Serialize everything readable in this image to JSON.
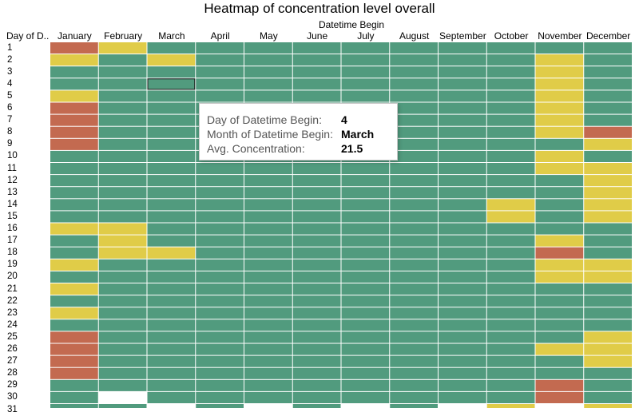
{
  "title": "Heatmap of concentration level overall",
  "row_header": "Day of D..",
  "column_group_label": "Datetime Begin",
  "colors": {
    "green": "#519b7e",
    "yellow": "#e0cc48",
    "red": "#c36a50",
    "empty": "#ffffff",
    "gridline": "#ffffff",
    "selection_outline": "#1e1e1e"
  },
  "chart_data": {
    "type": "heatmap",
    "title": "Heatmap of concentration level overall",
    "x_title": "Datetime Begin",
    "y_title": "Day of D..",
    "x_categories": [
      "January",
      "February",
      "March",
      "April",
      "May",
      "June",
      "July",
      "August",
      "September",
      "October",
      "November",
      "December"
    ],
    "y_categories": [
      "1",
      "2",
      "3",
      "4",
      "5",
      "6",
      "7",
      "8",
      "9",
      "10",
      "11",
      "12",
      "13",
      "14",
      "15",
      "16",
      "17",
      "18",
      "19",
      "20",
      "21",
      "22",
      "23",
      "24",
      "25",
      "26",
      "27",
      "28",
      "29",
      "30",
      "31"
    ],
    "cell_level_codes": {
      "G": "green",
      "Y": "yellow",
      "R": "red",
      "-": "no data"
    },
    "cells": [
      "RYGGGGGGGGGG",
      "YGYGGGGGGGYG",
      "GGGGGGGGGGYG",
      "GGGGGGGGGGYG",
      "YGGGGGGGGGYG",
      "RGGGGGGGGGYG",
      "RGGGGGGGGGYG",
      "RGGGGGGGGGYR",
      "RGGGGGGGGGGY",
      "GGGGGGGGGGYG",
      "GGGGGGGGGGYY",
      "GGGGGGGGGGGY",
      "GGGGGGGGGGGY",
      "GGGGGGGGGYGY",
      "GGGGGGGGGYGY",
      "YYGGGGGGGGGG",
      "GYGGGGGGGGYG",
      "GYYGGGGGGGRG",
      "YGGGGGGGGGYY",
      "GGGGGGGGGGYY",
      "YGGGGGGGGGGG",
      "GGGGGGGGGGGG",
      "YGGGGGGGGGGG",
      "GGGGGGGGGGGG",
      "RGGGGGGGGGGY",
      "RGGGGGGGGGYY",
      "RGGGGGGGGGGY",
      "RGGGGGGGGGGG",
      "GGGGGGGGGGRG",
      "G-GGGGGGGGRG",
      "GG-G-G-G-Y-Y"
    ],
    "selected_cell": {
      "day": "4",
      "month": "March"
    }
  },
  "tooltip": {
    "rows": [
      {
        "key": "Day of Datetime Begin:",
        "value": "4"
      },
      {
        "key": "Month of Datetime Begin:",
        "value": "March"
      },
      {
        "key": "Avg. Concentration:",
        "value": "21.5"
      }
    ]
  }
}
